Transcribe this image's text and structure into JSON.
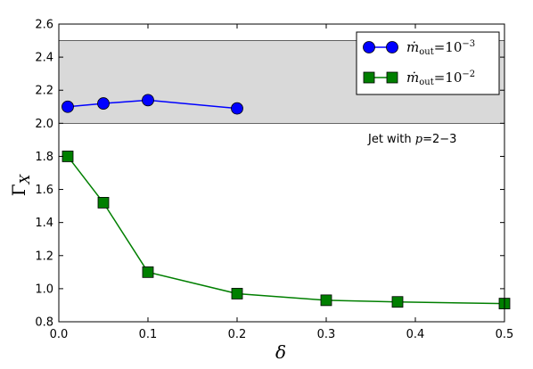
{
  "chart_data": {
    "type": "line",
    "xlabel": "δ",
    "ylabel": "Γ_X",
    "xlim": [
      0.0,
      0.5
    ],
    "ylim": [
      0.8,
      2.6
    ],
    "x_ticks": [
      0.0,
      0.1,
      0.2,
      0.3,
      0.4,
      0.5
    ],
    "x_tick_labels": [
      "0.0",
      "0.1",
      "0.2",
      "0.3",
      "0.4",
      "0.5"
    ],
    "y_ticks": [
      0.8,
      1.0,
      1.2,
      1.4,
      1.6,
      1.8,
      2.0,
      2.2,
      2.4,
      2.6
    ],
    "y_tick_labels": [
      "0.8",
      "1.0",
      "1.2",
      "1.4",
      "1.6",
      "1.8",
      "2.0",
      "2.2",
      "2.4",
      "2.6"
    ],
    "grid": false,
    "legend_position": "top-right",
    "shaded_band": {
      "y_range": [
        2.0,
        2.5
      ],
      "color": "#d9d9d9",
      "label": "Jet with p=2−3"
    },
    "series": [
      {
        "name": "ṁ_out=10^−3",
        "color": "#0000ff",
        "marker": "circle",
        "x": [
          0.01,
          0.05,
          0.1,
          0.2
        ],
        "y": [
          2.1,
          2.12,
          2.14,
          2.09
        ]
      },
      {
        "name": "ṁ_out=10^−2",
        "color": "#007f00",
        "marker": "square",
        "x": [
          0.01,
          0.05,
          0.1,
          0.2,
          0.3,
          0.38,
          0.5
        ],
        "y": [
          1.8,
          1.52,
          1.1,
          0.97,
          0.93,
          0.92,
          0.91
        ]
      }
    ]
  }
}
